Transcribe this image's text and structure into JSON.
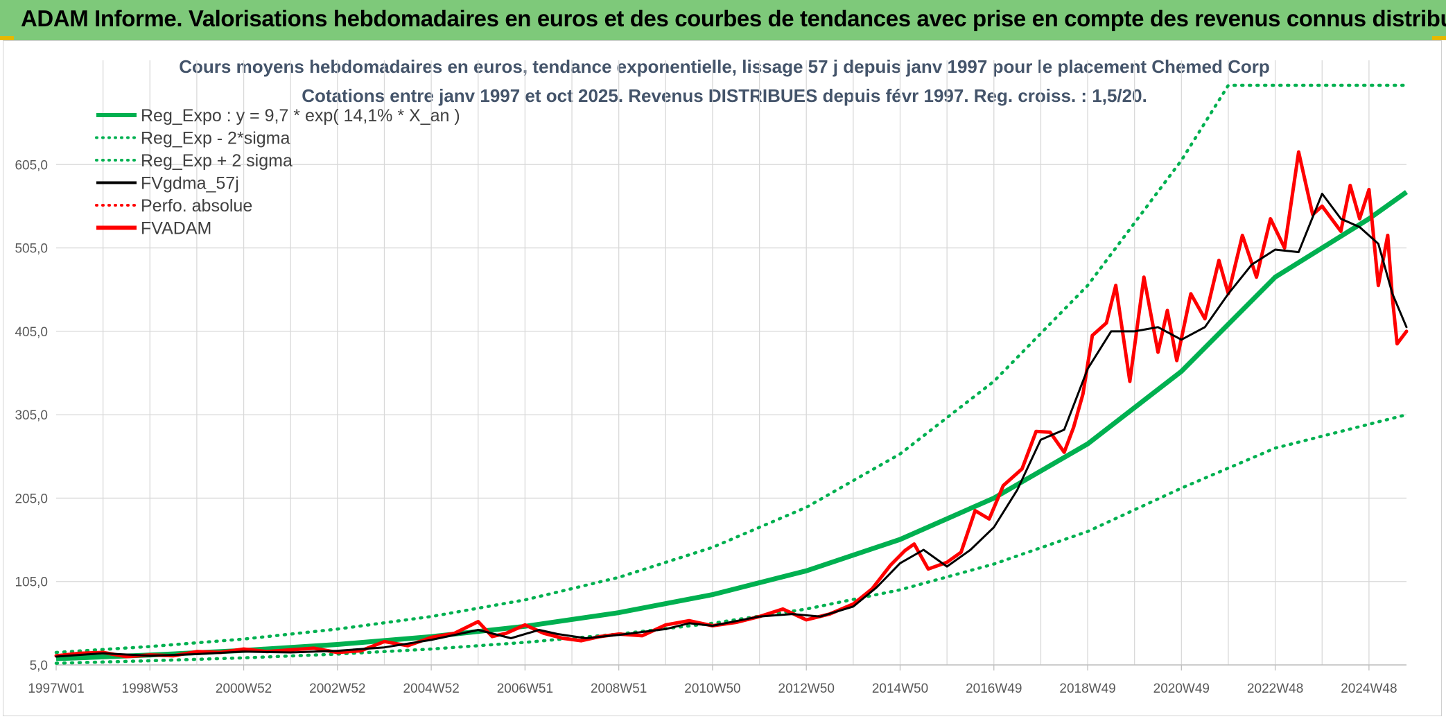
{
  "header": {
    "title": "ADAM Informe. Valorisations hebdomadaires en euros et des courbes de tendances avec prise en compte des revenus connus distribués"
  },
  "chart_data": {
    "type": "line",
    "title": "Cours moyens hebdomadaires en euros, tendance exponentielle, lissage 57 j depuis janv 1997 pour le placement Chemed Corp",
    "subtitle": "Cotations entre janv 1997 et oct 2025. Revenus DISTRIBUES depuis févr 1997. Reg. croiss. : 1,5/20.",
    "xlabel": "",
    "ylabel": "",
    "x_range": [
      1997.0,
      2025.8
    ],
    "ylim": [
      5,
      705
    ],
    "yticks": [
      "605,0",
      "505,0",
      "405,0",
      "305,0",
      "205,0",
      "105,0",
      "5,0"
    ],
    "ytick_values": [
      605,
      505,
      405,
      305,
      205,
      105,
      5
    ],
    "xticks": [
      "1997W01",
      "1998W53",
      "2000W52",
      "2002W52",
      "2004W52",
      "2006W51",
      "2008W51",
      "2010W50",
      "2012W50",
      "2014W50",
      "2016W49",
      "2018W49",
      "2020W49",
      "2022W48",
      "2024W48"
    ],
    "xtick_years": [
      1997.0,
      1999.0,
      2001.0,
      2003.0,
      2005.0,
      2007.0,
      2009.0,
      2011.0,
      2013.0,
      2015.0,
      2017.0,
      2019.0,
      2021.0,
      2023.0,
      2025.0
    ],
    "grid": true,
    "legend_position": "top-left",
    "legend": [
      {
        "label": "Reg_Expo : y = 9,7 * exp( 14,1% *  X_an )",
        "color": "#00b050",
        "style": "solid-thick"
      },
      {
        "label": "Reg_Exp - 2*sigma",
        "color": "#00b050",
        "style": "dotted"
      },
      {
        "label": "Reg_Exp + 2 sigma",
        "color": "#00b050",
        "style": "dotted"
      },
      {
        "label": "FVgdma_57j",
        "color": "#000000",
        "style": "solid"
      },
      {
        "label": "Perfo. absolue",
        "color": "#ff0000",
        "style": "dotted"
      },
      {
        "label": "FVADAM",
        "color": "#ff0000",
        "style": "solid-thick"
      }
    ],
    "series": [
      {
        "name": "Reg_Expo",
        "color": "#00b050",
        "x": [
          1997.0,
          1999.0,
          2001.0,
          2003.0,
          2005.0,
          2007.0,
          2009.0,
          2011.0,
          2013.0,
          2015.0,
          2017.0,
          2019.0,
          2021.0,
          2023.0,
          2025.0,
          2025.8
        ],
        "values": [
          12.5,
          16.8,
          22.4,
          29.5,
          38.9,
          51.3,
          67.7,
          89.3,
          117.8,
          155.5,
          205,
          270,
          357,
          470,
          540,
          572
        ]
      },
      {
        "name": "Reg_Exp - 2*sigma",
        "color": "#00b050",
        "x": [
          1997.0,
          1999.0,
          2001.0,
          2003.0,
          2005.0,
          2007.0,
          2009.0,
          2011.0,
          2013.0,
          2015.0,
          2017.0,
          2019.0,
          2021.0,
          2023.0,
          2025.8
        ],
        "values": [
          7,
          10,
          13.5,
          18,
          24,
          32,
          42,
          55,
          72,
          95,
          126,
          165,
          217,
          265,
          305
        ]
      },
      {
        "name": "Reg_Exp + 2 sigma",
        "color": "#00b050",
        "x": [
          1997.0,
          1999.0,
          2001.0,
          2003.0,
          2005.0,
          2007.0,
          2009.0,
          2011.0,
          2013.0,
          2015.0,
          2017.0,
          2019.0,
          2021.0,
          2022.0,
          2023.0,
          2025.8
        ],
        "values": [
          20,
          27,
          36,
          48,
          63,
          83,
          110,
          146,
          194,
          258,
          345,
          460,
          610,
          700,
          700,
          700
        ]
      },
      {
        "name": "FVgdma_57j",
        "color": "#000000",
        "x": [
          1997.0,
          1998.0,
          1999.0,
          2000.0,
          2001.0,
          2002.0,
          2003.0,
          2004.0,
          2005.0,
          2006.0,
          2006.7,
          2007.3,
          2007.7,
          2008.3,
          2009.0,
          2010.0,
          2010.5,
          2011.0,
          2012.0,
          2012.7,
          2013.3,
          2014.0,
          2014.5,
          2015.0,
          2015.5,
          2016.0,
          2016.5,
          2017.0,
          2017.5,
          2018.0,
          2018.5,
          2019.0,
          2019.5,
          2020.0,
          2020.5,
          2021.0,
          2021.5,
          2022.0,
          2022.5,
          2023.0,
          2023.5,
          2024.0,
          2024.4,
          2024.8,
          2025.2,
          2025.5,
          2025.8
        ],
        "values": [
          15,
          19,
          16,
          18,
          21,
          20,
          22,
          26,
          35,
          47,
          37,
          47,
          42,
          37,
          41,
          48,
          55,
          52,
          63,
          66,
          63,
          75,
          98,
          127,
          143,
          123,
          143,
          170,
          215,
          275,
          287,
          360,
          405,
          405,
          410,
          395,
          410,
          450,
          485,
          503,
          500,
          570,
          540,
          530,
          510,
          450,
          410
        ]
      },
      {
        "name": "FVADAM",
        "color": "#ff0000",
        "x": [
          1997.0,
          1997.5,
          1998.0,
          1998.5,
          1999.0,
          1999.5,
          2000.0,
          2000.5,
          2001.0,
          2001.5,
          2002.0,
          2002.5,
          2003.0,
          2003.5,
          2004.0,
          2004.5,
          2005.0,
          2005.5,
          2006.0,
          2006.3,
          2006.6,
          2007.0,
          2007.4,
          2007.8,
          2008.2,
          2008.6,
          2009.0,
          2009.5,
          2010.0,
          2010.5,
          2011.0,
          2011.5,
          2012.0,
          2012.5,
          2013.0,
          2013.5,
          2014.0,
          2014.4,
          2014.8,
          2015.1,
          2015.3,
          2015.6,
          2016.0,
          2016.3,
          2016.6,
          2016.9,
          2017.2,
          2017.6,
          2017.9,
          2018.2,
          2018.5,
          2018.7,
          2018.9,
          2019.1,
          2019.4,
          2019.6,
          2019.9,
          2020.2,
          2020.5,
          2020.7,
          2020.9,
          2021.2,
          2021.5,
          2021.8,
          2022.0,
          2022.3,
          2022.6,
          2022.9,
          2023.2,
          2023.5,
          2023.8,
          2024.0,
          2024.2,
          2024.4,
          2024.6,
          2024.8,
          2025.0,
          2025.2,
          2025.4,
          2025.5,
          2025.6,
          2025.8
        ],
        "values": [
          16,
          19,
          20,
          15,
          17,
          16,
          21,
          20,
          24,
          21,
          23,
          25,
          20,
          22,
          33,
          28,
          38,
          43,
          57,
          39,
          43,
          53,
          43,
          37,
          34,
          39,
          42,
          40,
          53,
          58,
          52,
          56,
          63,
          72,
          59,
          66,
          78,
          96,
          125,
          142,
          150,
          120,
          128,
          140,
          190,
          180,
          220,
          240,
          285,
          284,
          260,
          290,
          330,
          400,
          415,
          460,
          345,
          470,
          380,
          430,
          370,
          450,
          420,
          490,
          450,
          520,
          470,
          540,
          505,
          620,
          545,
          555,
          540,
          525,
          580,
          540,
          575,
          460,
          520,
          445,
          390,
          405
        ]
      }
    ]
  }
}
